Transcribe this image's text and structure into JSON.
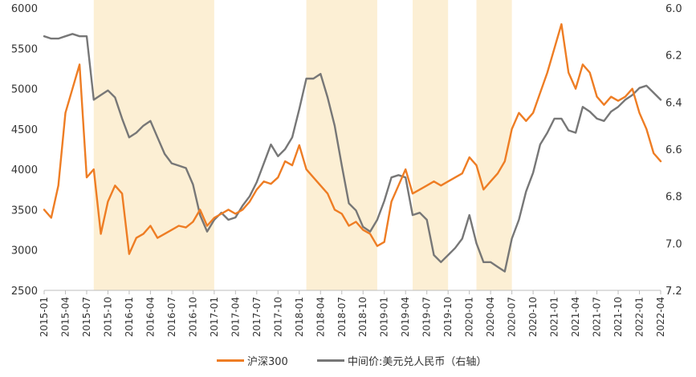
{
  "chart_data": {
    "type": "line",
    "colors": {
      "hs300": "#EE7D24",
      "usdcny": "#777777",
      "shade": "#FCEFD4",
      "axis": "#BDBDBD"
    },
    "left_axis": {
      "ylim": [
        2500,
        6000
      ],
      "ticks": [
        "2500",
        "3000",
        "3500",
        "4000",
        "4500",
        "5000",
        "5500",
        "6000"
      ]
    },
    "right_axis": {
      "ylim": [
        6.0,
        7.2
      ],
      "inverted": true,
      "ticks": [
        "6.0",
        "6.2",
        "6.4",
        "6.6",
        "6.8",
        "7.0",
        "7.2"
      ]
    },
    "x_ticks": [
      "2015-01",
      "2015-04",
      "2015-07",
      "2015-10",
      "2016-01",
      "2016-04",
      "2016-07",
      "2016-10",
      "2017-01",
      "2017-04",
      "2017-07",
      "2017-10",
      "2018-01",
      "2018-04",
      "2018-07",
      "2018-10",
      "2019-01",
      "2019-04",
      "2019-07",
      "2019-10",
      "2020-01",
      "2020-04",
      "2020-07",
      "2020-10",
      "2021-01",
      "2021-04",
      "2021-07",
      "2021-10",
      "2022-01",
      "2022-04"
    ],
    "shaded_periods": [
      [
        "2015-08",
        "2017-01"
      ],
      [
        "2018-02",
        "2018-12"
      ],
      [
        "2019-05",
        "2019-10"
      ],
      [
        "2020-02",
        "2020-07"
      ]
    ],
    "series": [
      {
        "name": "沪深300",
        "axis": "left",
        "x": [
          "2015-01",
          "2015-02",
          "2015-03",
          "2015-04",
          "2015-05",
          "2015-06",
          "2015-07",
          "2015-08",
          "2015-09",
          "2015-10",
          "2015-11",
          "2015-12",
          "2016-01",
          "2016-02",
          "2016-03",
          "2016-04",
          "2016-05",
          "2016-06",
          "2016-07",
          "2016-08",
          "2016-09",
          "2016-10",
          "2016-11",
          "2016-12",
          "2017-01",
          "2017-02",
          "2017-03",
          "2017-04",
          "2017-05",
          "2017-06",
          "2017-07",
          "2017-08",
          "2017-09",
          "2017-10",
          "2017-11",
          "2017-12",
          "2018-01",
          "2018-02",
          "2018-03",
          "2018-04",
          "2018-05",
          "2018-06",
          "2018-07",
          "2018-08",
          "2018-09",
          "2018-10",
          "2018-11",
          "2018-12",
          "2019-01",
          "2019-02",
          "2019-03",
          "2019-04",
          "2019-05",
          "2019-06",
          "2019-07",
          "2019-08",
          "2019-09",
          "2019-10",
          "2019-11",
          "2019-12",
          "2020-01",
          "2020-02",
          "2020-03",
          "2020-04",
          "2020-05",
          "2020-06",
          "2020-07",
          "2020-08",
          "2020-09",
          "2020-10",
          "2020-11",
          "2020-12",
          "2021-01",
          "2021-02",
          "2021-03",
          "2021-04",
          "2021-05",
          "2021-06",
          "2021-07",
          "2021-08",
          "2021-09",
          "2021-10",
          "2021-11",
          "2021-12",
          "2022-01",
          "2022-02",
          "2022-03",
          "2022-04"
        ],
        "values": [
          3500,
          3400,
          3800,
          4700,
          5000,
          5300,
          3900,
          4000,
          3200,
          3600,
          3800,
          3700,
          2950,
          3150,
          3200,
          3300,
          3150,
          3200,
          3250,
          3300,
          3280,
          3350,
          3500,
          3300,
          3400,
          3450,
          3500,
          3450,
          3500,
          3600,
          3750,
          3850,
          3820,
          3900,
          4100,
          4050,
          4300,
          4000,
          3900,
          3800,
          3700,
          3500,
          3450,
          3300,
          3350,
          3250,
          3200,
          3050,
          3100,
          3600,
          3800,
          4000,
          3700,
          3750,
          3800,
          3850,
          3800,
          3850,
          3900,
          3950,
          4150,
          4050,
          3750,
          3850,
          3950,
          4100,
          4500,
          4700,
          4600,
          4700,
          4950,
          5200,
          5500,
          5800,
          5200,
          5000,
          5300,
          5200,
          4900,
          4800,
          4900,
          4850,
          4900,
          5000,
          4700,
          4500,
          4200,
          4100
        ]
      },
      {
        "name": "中间价:美元兑人民币（右轴）",
        "axis": "right",
        "x": [
          "2015-01",
          "2015-02",
          "2015-03",
          "2015-04",
          "2015-05",
          "2015-06",
          "2015-07",
          "2015-08",
          "2015-09",
          "2015-10",
          "2015-11",
          "2015-12",
          "2016-01",
          "2016-02",
          "2016-03",
          "2016-04",
          "2016-05",
          "2016-06",
          "2016-07",
          "2016-08",
          "2016-09",
          "2016-10",
          "2016-11",
          "2016-12",
          "2017-01",
          "2017-02",
          "2017-03",
          "2017-04",
          "2017-05",
          "2017-06",
          "2017-07",
          "2017-08",
          "2017-09",
          "2017-10",
          "2017-11",
          "2017-12",
          "2018-01",
          "2018-02",
          "2018-03",
          "2018-04",
          "2018-05",
          "2018-06",
          "2018-07",
          "2018-08",
          "2018-09",
          "2018-10",
          "2018-11",
          "2018-12",
          "2019-01",
          "2019-02",
          "2019-03",
          "2019-04",
          "2019-05",
          "2019-06",
          "2019-07",
          "2019-08",
          "2019-09",
          "2019-10",
          "2019-11",
          "2019-12",
          "2020-01",
          "2020-02",
          "2020-03",
          "2020-04",
          "2020-05",
          "2020-06",
          "2020-07",
          "2020-08",
          "2020-09",
          "2020-10",
          "2020-11",
          "2020-12",
          "2021-01",
          "2021-02",
          "2021-03",
          "2021-04",
          "2021-05",
          "2021-06",
          "2021-07",
          "2021-08",
          "2021-09",
          "2021-10",
          "2021-11",
          "2021-12",
          "2022-01",
          "2022-02",
          "2022-03",
          "2022-04"
        ],
        "values": [
          6.12,
          6.13,
          6.13,
          6.12,
          6.11,
          6.12,
          6.12,
          6.39,
          6.37,
          6.35,
          6.38,
          6.47,
          6.55,
          6.53,
          6.5,
          6.48,
          6.55,
          6.62,
          6.66,
          6.67,
          6.68,
          6.75,
          6.88,
          6.95,
          6.9,
          6.87,
          6.9,
          6.89,
          6.84,
          6.8,
          6.74,
          6.66,
          6.58,
          6.63,
          6.6,
          6.55,
          6.43,
          6.3,
          6.3,
          6.28,
          6.38,
          6.5,
          6.67,
          6.83,
          6.86,
          6.93,
          6.95,
          6.9,
          6.82,
          6.72,
          6.71,
          6.72,
          6.88,
          6.87,
          6.9,
          7.05,
          7.08,
          7.05,
          7.02,
          6.98,
          6.88,
          7.0,
          7.08,
          7.08,
          7.1,
          7.12,
          6.98,
          6.9,
          6.78,
          6.7,
          6.58,
          6.53,
          6.47,
          6.47,
          6.52,
          6.53,
          6.42,
          6.44,
          6.47,
          6.48,
          6.44,
          6.42,
          6.39,
          6.37,
          6.34,
          6.33,
          6.36,
          6.39
        ]
      }
    ]
  }
}
